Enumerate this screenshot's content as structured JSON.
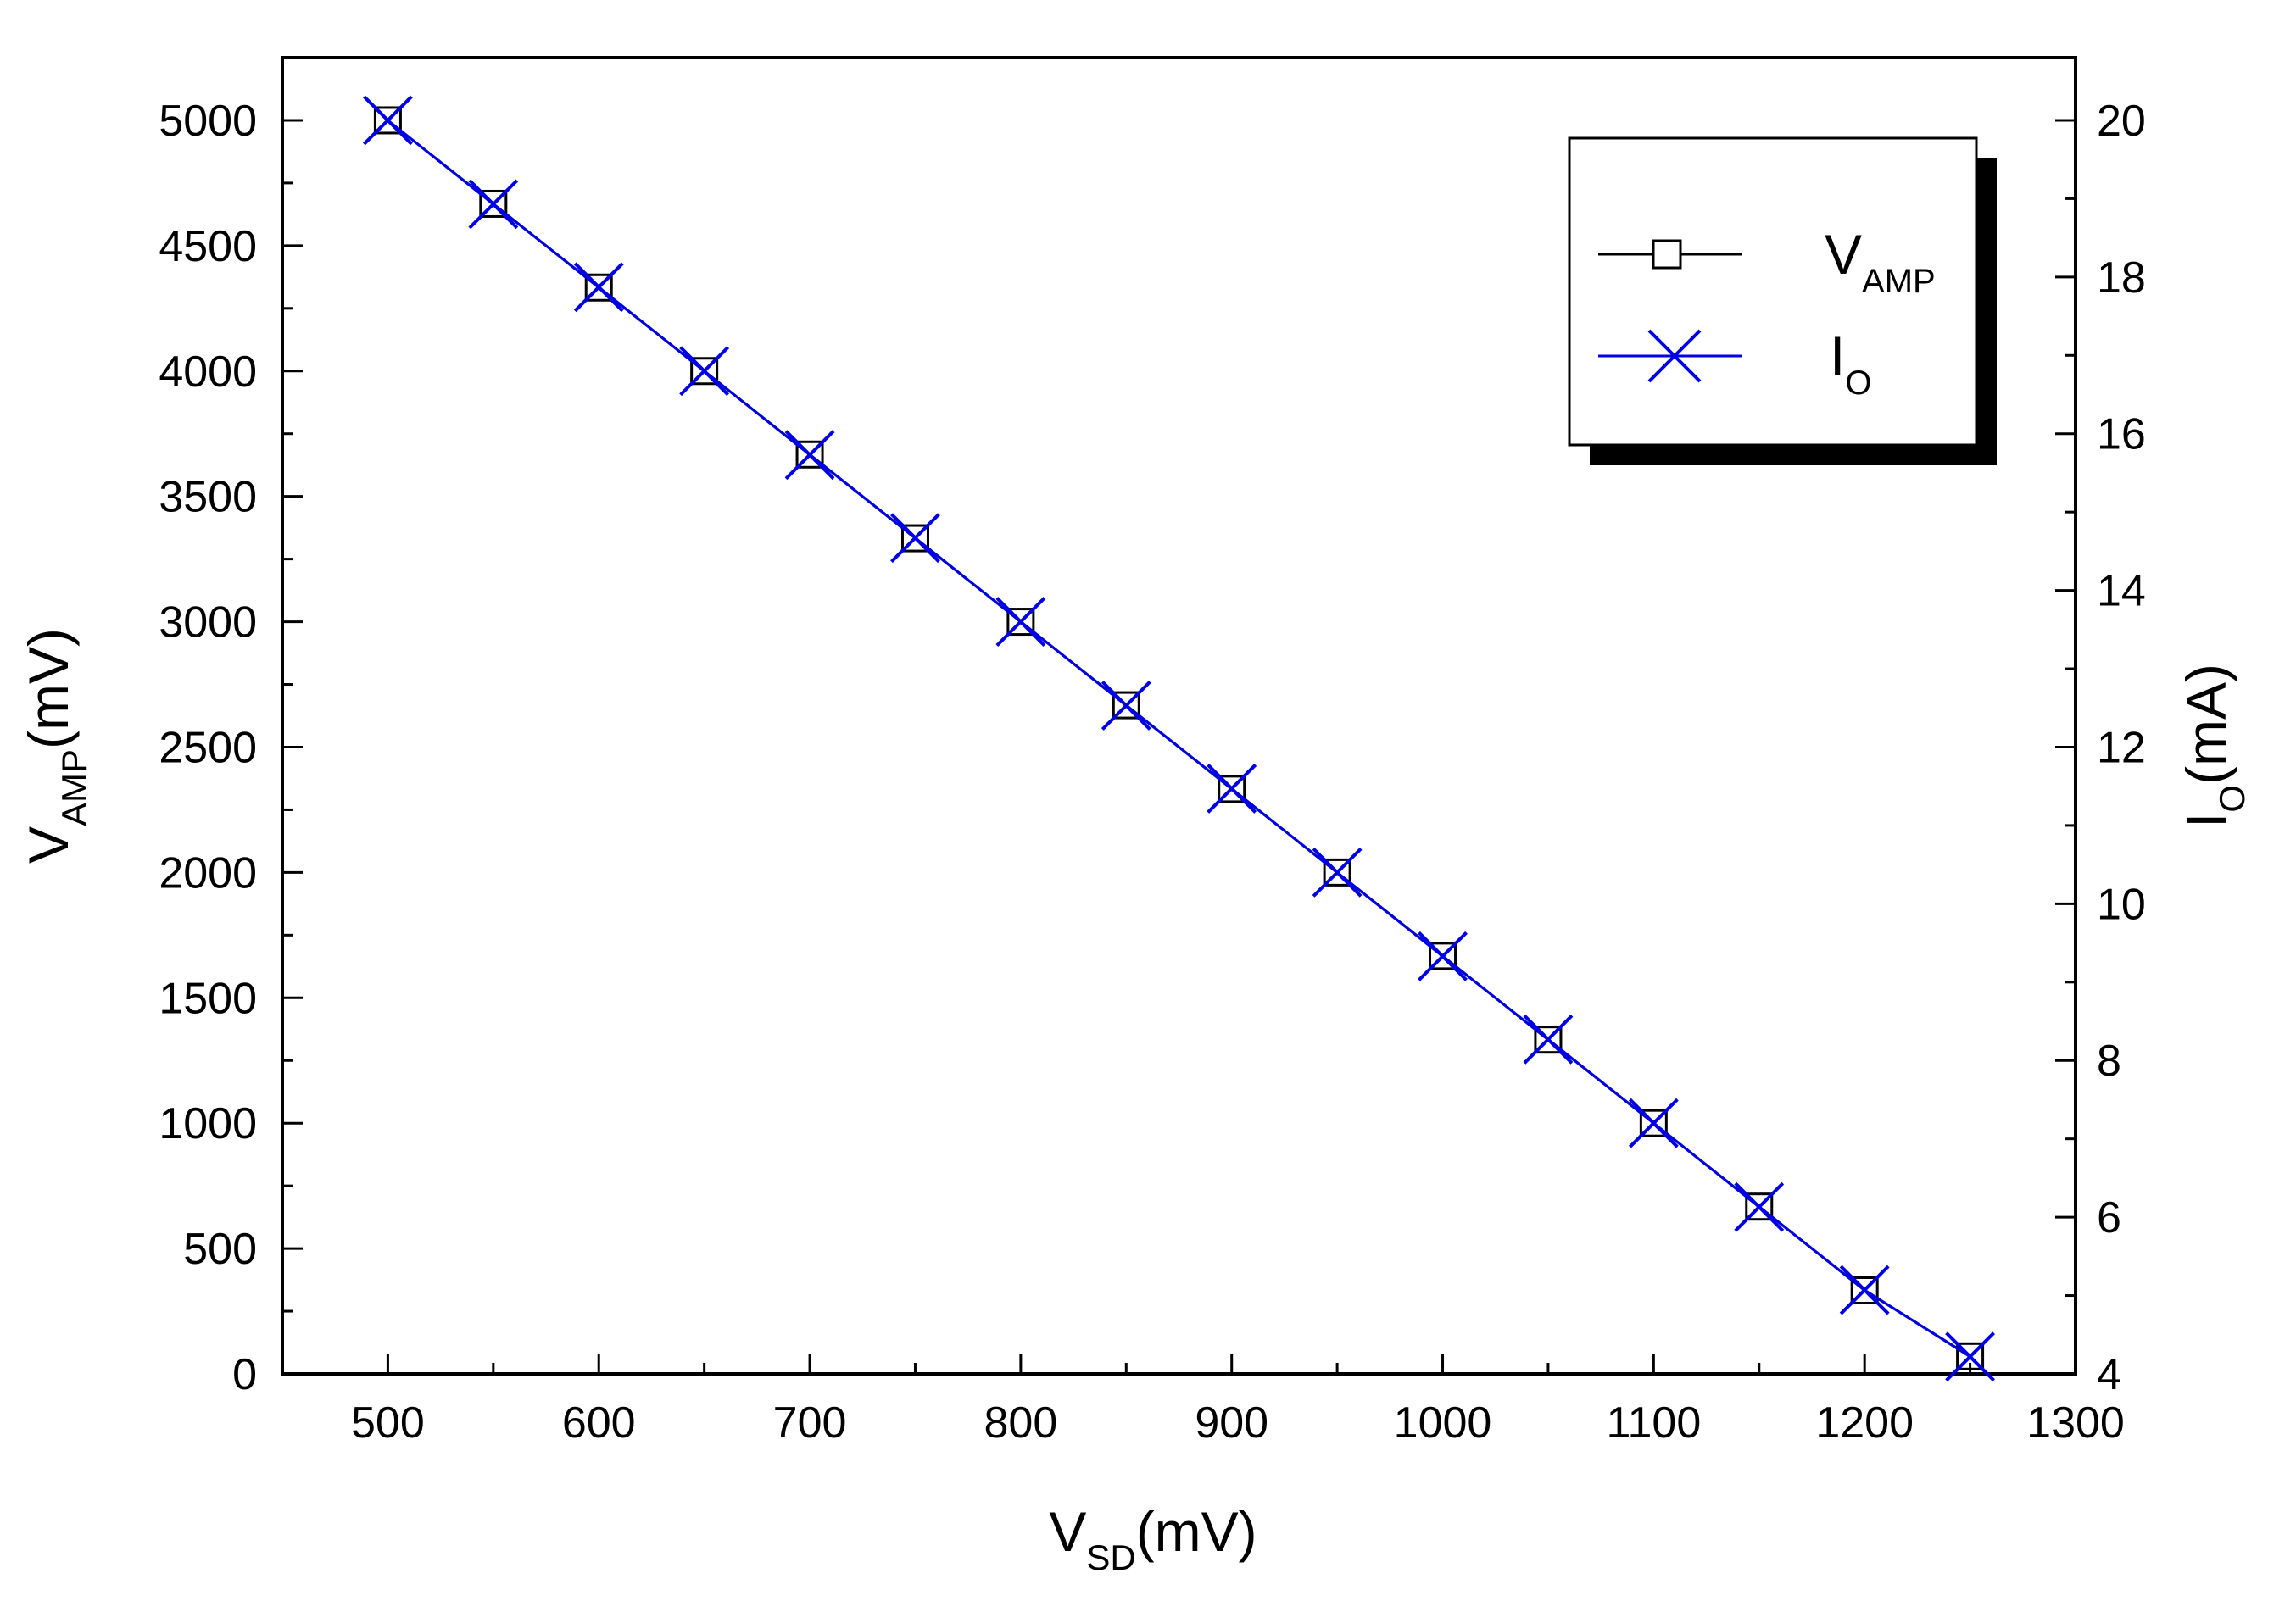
{
  "chart_data": {
    "type": "line",
    "title": "",
    "x": [
      500,
      550,
      600,
      650,
      700,
      750,
      800,
      850,
      900,
      950,
      1000,
      1050,
      1100,
      1150,
      1200,
      1250
    ],
    "series": [
      {
        "name": "V_AMP",
        "axis": "left",
        "marker": "square",
        "color": "#000000",
        "values": [
          5000,
          4667,
          4333,
          4000,
          3667,
          3333,
          3000,
          2667,
          2333,
          2000,
          1667,
          1333,
          1000,
          667,
          333,
          70
        ]
      },
      {
        "name": "I_O",
        "axis": "right",
        "marker": "x",
        "color": "#0000e6",
        "values": [
          20.0,
          18.93,
          17.87,
          16.8,
          15.73,
          14.67,
          13.6,
          12.53,
          11.47,
          10.4,
          9.33,
          8.27,
          7.2,
          6.13,
          5.07,
          4.22
        ]
      }
    ],
    "xlim": [
      450,
      1300
    ],
    "ylim": [
      0,
      5250
    ],
    "y2lim": [
      4,
      20.8
    ],
    "xticks": [
      500,
      600,
      700,
      800,
      900,
      1000,
      1100,
      1200,
      1300
    ],
    "yticks": [
      0,
      500,
      1000,
      1500,
      2000,
      2500,
      3000,
      3500,
      4000,
      4500,
      5000
    ],
    "y2ticks": [
      4,
      6,
      8,
      10,
      12,
      14,
      16,
      18,
      20
    ],
    "xlabel": {
      "main": "V",
      "sub": "SD",
      "unit": "(mV)"
    },
    "ylabel": {
      "main": "V",
      "sub": "AMP",
      "unit": "(mV)"
    },
    "y2label": {
      "main": "I",
      "sub": "O",
      "unit": "(mA)"
    },
    "legend": {
      "position": "top-right",
      "entries": [
        {
          "main": "V",
          "sub": "AMP"
        },
        {
          "main": "I",
          "sub": "O"
        }
      ]
    },
    "grid": false
  }
}
